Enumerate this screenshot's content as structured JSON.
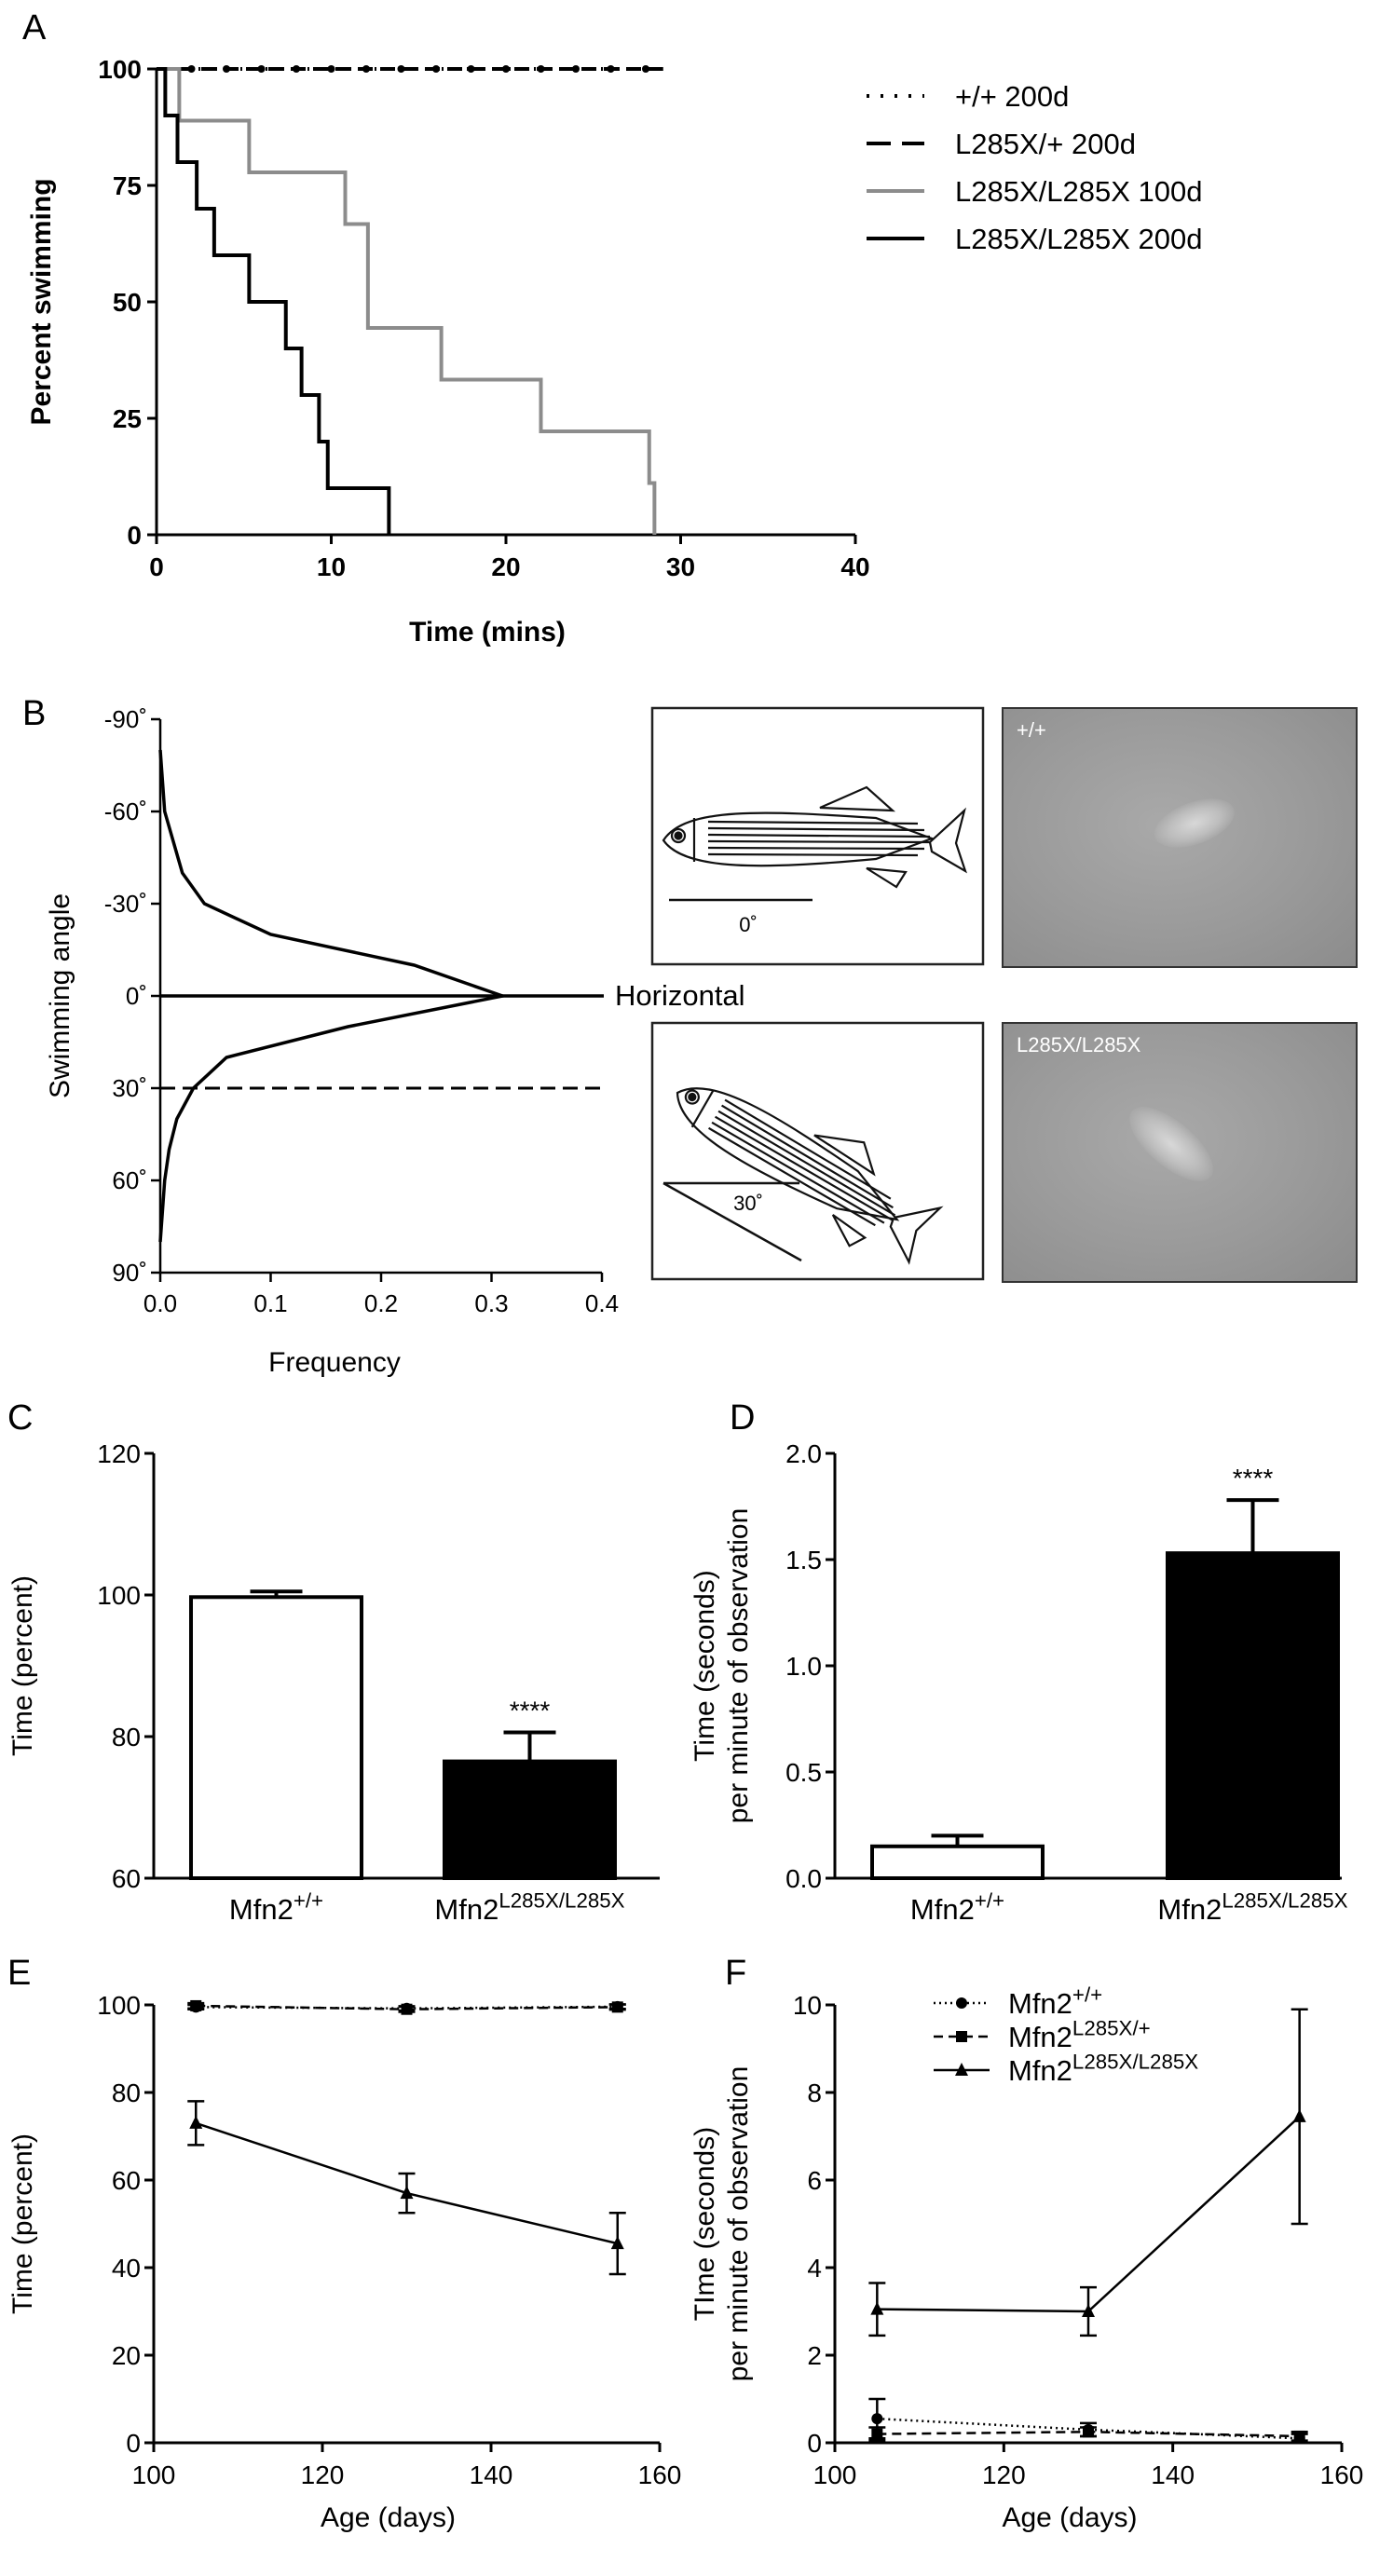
{
  "panels": {
    "A": "A",
    "B": "B",
    "C": "C",
    "D": "D",
    "E": "E",
    "F": "F"
  },
  "chart_data": [
    {
      "panel": "A",
      "type": "line",
      "step": true,
      "xlabel": "Time (mins)",
      "ylabel": "Percent swimming",
      "xlim": [
        0,
        40
      ],
      "ylim": [
        0,
        100
      ],
      "xticks": [
        0,
        10,
        20,
        30,
        40
      ],
      "yticks": [
        0,
        25,
        50,
        75,
        100
      ],
      "legend_position": "top-right",
      "series": [
        {
          "name": "+/+ 200d",
          "style": "dotted",
          "color": "#000000",
          "x": [
            0,
            29
          ],
          "y": [
            100,
            100
          ]
        },
        {
          "name": "L285X/+ 200d",
          "style": "dashed",
          "color": "#000000",
          "x": [
            0,
            29
          ],
          "y": [
            100,
            100
          ]
        },
        {
          "name": "L285X/L285X 100d",
          "style": "solid",
          "color": "#8c8c8c",
          "x": [
            0,
            1.3,
            5.3,
            10.8,
            12.1,
            16.3,
            22,
            28.2,
            28.5
          ],
          "y": [
            100,
            88.9,
            77.8,
            66.7,
            44.4,
            33.3,
            22.2,
            11.1,
            0
          ]
        },
        {
          "name": "L285X/L285X 200d",
          "style": "solid",
          "color": "#000000",
          "x": [
            0,
            0.5,
            1.2,
            2.3,
            3.3,
            5.3,
            7.4,
            8.3,
            9.3,
            9.8,
            13.3
          ],
          "y": [
            100,
            90,
            80,
            70,
            60,
            50,
            40,
            30,
            20,
            10,
            0
          ]
        }
      ]
    },
    {
      "panel": "B",
      "type": "line",
      "xlabel": "Frequency",
      "ylabel": "Swimming angle",
      "xlim": [
        0,
        0.4
      ],
      "xticks": [
        "0.0",
        "0.1",
        "0.2",
        "0.3",
        "0.4"
      ],
      "ylim": [
        -90,
        90
      ],
      "yticks": [
        "-90˚",
        "-60˚",
        "-30˚",
        "0˚",
        "30˚",
        "60˚",
        "90˚"
      ],
      "annotation": "Horizontal",
      "reference_line_angle": 30,
      "series": [
        {
          "name": "",
          "style": "solid",
          "color": "#000000",
          "angle": [
            -80,
            -70,
            -60,
            -50,
            -40,
            -30,
            -20,
            -10,
            0,
            10,
            20,
            30,
            40,
            50,
            60,
            70,
            80
          ],
          "frequency": [
            0.0,
            0.002,
            0.004,
            0.012,
            0.02,
            0.04,
            0.1,
            0.23,
            0.31,
            0.17,
            0.06,
            0.03,
            0.015,
            0.008,
            0.004,
            0.002,
            0.0
          ]
        }
      ]
    },
    {
      "panel": "C",
      "type": "bar",
      "ylabel": "Time (percent)",
      "ylim": [
        60,
        120
      ],
      "yticks": [
        60,
        80,
        100,
        120
      ],
      "categories": [
        "Mfn2",
        "Mfn2"
      ],
      "category_superscripts": [
        "+/+",
        "L285X/L285X"
      ],
      "values": [
        99.7,
        76.5
      ],
      "errors": [
        0.8,
        4.1
      ],
      "fills": [
        "#ffffff",
        "#000000"
      ],
      "significance": [
        "",
        "****"
      ]
    },
    {
      "panel": "D",
      "type": "bar",
      "ylabel": "Time (seconds)",
      "ylabel_line2": "per minute of observation",
      "ylim": [
        0,
        2.0
      ],
      "yticks": [
        "0.0",
        "0.5",
        "1.0",
        "1.5",
        "2.0"
      ],
      "categories": [
        "Mfn2",
        "Mfn2"
      ],
      "category_superscripts": [
        "+/+",
        "L285X/L285X"
      ],
      "values": [
        0.15,
        1.53
      ],
      "errors": [
        0.05,
        0.25
      ],
      "fills": [
        "#ffffff",
        "#000000"
      ],
      "significance": [
        "",
        "****"
      ]
    },
    {
      "panel": "E",
      "type": "line",
      "xlabel": "Age (days)",
      "ylabel": "Time (percent)",
      "xlim": [
        100,
        160
      ],
      "ylim": [
        0,
        100
      ],
      "xticks": [
        100,
        120,
        140,
        160
      ],
      "yticks": [
        0,
        20,
        40,
        60,
        80,
        100
      ],
      "x": [
        105,
        130,
        155
      ],
      "series": [
        {
          "name": "Mfn2+/+",
          "style": "dotted",
          "marker": "circle",
          "values": [
            99.5,
            99.2,
            99.6
          ],
          "errors": [
            0.5,
            0.5,
            0.5
          ]
        },
        {
          "name": "Mfn2L285X/+",
          "style": "dashed",
          "marker": "square",
          "values": [
            99.8,
            99.0,
            99.5
          ],
          "errors": [
            0.6,
            0.6,
            0.6
          ]
        },
        {
          "name": "Mfn2L285X/L285X",
          "style": "solid",
          "marker": "triangle",
          "values": [
            73,
            57,
            45.5
          ],
          "errors": [
            5,
            4.5,
            7
          ]
        }
      ]
    },
    {
      "panel": "F",
      "type": "line",
      "xlabel": "Age (days)",
      "ylabel": "TIme (seconds)",
      "ylabel_line2": "per minute of observation",
      "xlim": [
        100,
        160
      ],
      "ylim": [
        0,
        10
      ],
      "xticks": [
        100,
        120,
        140,
        160
      ],
      "yticks": [
        0,
        2,
        4,
        6,
        8,
        10
      ],
      "legend_position": "top-right",
      "x": [
        105,
        130,
        155
      ],
      "series": [
        {
          "name": "Mfn2",
          "superscript": "+/+",
          "style": "dotted",
          "marker": "circle",
          "values": [
            0.55,
            0.3,
            0.1
          ],
          "errors": [
            0.45,
            0.15,
            0.1
          ]
        },
        {
          "name": "Mfn2",
          "superscript": "L285X/+",
          "style": "dashed",
          "marker": "square",
          "values": [
            0.2,
            0.25,
            0.15
          ],
          "errors": [
            0.15,
            0.1,
            0.1
          ]
        },
        {
          "name": "Mfn2",
          "superscript": "L285X/L285X",
          "style": "solid",
          "marker": "triangle",
          "values": [
            3.05,
            3.0,
            7.45
          ],
          "errors": [
            0.6,
            0.55,
            2.45
          ]
        }
      ]
    }
  ],
  "diagrams": {
    "fish_top_label": "0˚",
    "fish_bottom_label": "30˚"
  },
  "photos": {
    "top_label": "+/+",
    "bottom_label": "L285X/L285X"
  }
}
